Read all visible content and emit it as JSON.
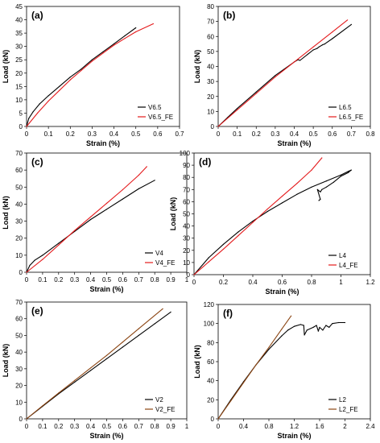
{
  "colors": {
    "experimental": "#000000",
    "fe_red": "#e41a1c",
    "fe_brown": "#8b4513"
  },
  "chart_data": [
    {
      "type": "line",
      "panel_label": "(a)",
      "xlabel": "Strain (%)",
      "ylabel": "Load (kN)",
      "xlim": [
        0,
        0.7
      ],
      "ylim": [
        0,
        45
      ],
      "xticks": [
        0,
        0.1,
        0.2,
        0.3,
        0.4,
        0.5,
        0.6,
        0.7
      ],
      "xtick_labels": [
        "0",
        "0.1",
        "0.2",
        "0.3",
        "0.4",
        "0.5",
        "0.6",
        "0.7"
      ],
      "yticks": [
        0,
        5,
        10,
        15,
        20,
        25,
        30,
        35,
        40,
        45
      ],
      "ytick_labels": [
        "0",
        "5",
        "10",
        "15",
        "20",
        "25",
        "30",
        "35",
        "40",
        "45"
      ],
      "legend_position": "bottom-right",
      "grid": false,
      "series": [
        {
          "name": "V6.5",
          "color": "#000000",
          "x": [
            0,
            0.01,
            0.03,
            0.06,
            0.1,
            0.15,
            0.2,
            0.25,
            0.3,
            0.35,
            0.4,
            0.45,
            0.5
          ],
          "y": [
            0,
            3,
            5.5,
            8.5,
            11.5,
            15,
            18.5,
            21.5,
            25,
            28,
            31,
            34,
            37
          ]
        },
        {
          "name": "V6.5_FE",
          "color": "#e41a1c",
          "x": [
            0,
            0.05,
            0.1,
            0.15,
            0.2,
            0.25,
            0.3,
            0.35,
            0.4,
            0.45,
            0.5,
            0.58
          ],
          "y": [
            0,
            5,
            9.5,
            13.5,
            17.5,
            21,
            24.5,
            27.5,
            30.5,
            33,
            35.5,
            38.5
          ]
        }
      ]
    },
    {
      "type": "line",
      "panel_label": "(b)",
      "xlabel": "Strain (%)",
      "ylabel": "Load (kN)",
      "xlim": [
        0,
        0.8
      ],
      "ylim": [
        0,
        80
      ],
      "xticks": [
        0,
        0.1,
        0.2,
        0.3,
        0.4,
        0.5,
        0.6,
        0.7,
        0.8
      ],
      "xtick_labels": [
        "0",
        "0.1",
        "0.2",
        "0.3",
        "0.4",
        "0.5",
        "0.6",
        "0.7",
        "0.8"
      ],
      "yticks": [
        0,
        10,
        20,
        30,
        40,
        50,
        60,
        70,
        80
      ],
      "ytick_labels": [
        "0",
        "10",
        "20",
        "30",
        "40",
        "50",
        "60",
        "70",
        "80"
      ],
      "legend_position": "bottom-right",
      "grid": false,
      "series": [
        {
          "name": "L6.5",
          "color": "#000000",
          "x": [
            0,
            0.05,
            0.1,
            0.2,
            0.3,
            0.4,
            0.42,
            0.43,
            0.5,
            0.52,
            0.53,
            0.55,
            0.56,
            0.6,
            0.7
          ],
          "y": [
            0,
            6,
            12,
            23,
            34,
            43,
            44.5,
            44,
            51,
            52,
            53,
            54.5,
            55,
            58.5,
            68
          ]
        },
        {
          "name": "L6.5_FE",
          "color": "#e41a1c",
          "x": [
            0,
            0.1,
            0.2,
            0.3,
            0.4,
            0.5,
            0.6,
            0.68
          ],
          "y": [
            0,
            11,
            22,
            33,
            43,
            53,
            63,
            71
          ]
        }
      ]
    },
    {
      "type": "line",
      "panel_label": "(c)",
      "xlabel": "Strain (%)",
      "ylabel": "Load (kN)",
      "xlim": [
        0,
        1
      ],
      "ylim": [
        0,
        70
      ],
      "xticks": [
        0,
        0.1,
        0.2,
        0.3,
        0.4,
        0.5,
        0.6,
        0.7,
        0.8,
        0.9,
        1
      ],
      "xtick_labels": [
        "0",
        "0.1",
        "0.2",
        "0.3",
        "0.4",
        "0.5",
        "0.6",
        "0.7",
        "0.8",
        "0.9",
        "1"
      ],
      "yticks": [
        0,
        10,
        20,
        30,
        40,
        50,
        60,
        70
      ],
      "ytick_labels": [
        "0",
        "10",
        "20",
        "30",
        "40",
        "50",
        "60",
        "70"
      ],
      "legend_position": "bottom-right",
      "grid": false,
      "series": [
        {
          "name": "V4",
          "color": "#000000",
          "x": [
            0,
            0.02,
            0.05,
            0.1,
            0.2,
            0.3,
            0.4,
            0.5,
            0.6,
            0.7,
            0.8
          ],
          "y": [
            0,
            4,
            7,
            10,
            17,
            24,
            31,
            37,
            43,
            49,
            54
          ]
        },
        {
          "name": "V4_FE",
          "color": "#e41a1c",
          "x": [
            0,
            0.1,
            0.2,
            0.3,
            0.4,
            0.5,
            0.6,
            0.7,
            0.75
          ],
          "y": [
            0,
            7.5,
            16,
            24.5,
            32.5,
            40.5,
            48.5,
            57,
            62
          ]
        }
      ]
    },
    {
      "type": "line",
      "panel_label": "(d)",
      "xlabel": "Strain (%)",
      "ylabel": "Load (kN)",
      "xlim": [
        0,
        1.2
      ],
      "ylim": [
        0,
        100
      ],
      "xticks": [
        0,
        0.2,
        0.4,
        0.6,
        0.8,
        1,
        1.2
      ],
      "xtick_labels": [
        "0",
        "0.2",
        "0.4",
        "0.6",
        "0.8",
        "1",
        "1.2"
      ],
      "yticks": [
        0,
        10,
        20,
        30,
        40,
        50,
        60,
        70,
        80,
        90,
        100
      ],
      "ytick_labels": [
        "0",
        "10",
        "20",
        "30",
        "40",
        "50",
        "60",
        "70",
        "80",
        "90",
        "100"
      ],
      "legend_position": "bottom-right",
      "grid": false,
      "series": [
        {
          "name": "L4",
          "color": "#000000",
          "x": [
            0,
            0.1,
            0.2,
            0.3,
            0.4,
            0.5,
            0.6,
            0.7,
            0.8,
            0.9,
            1.0,
            1.05,
            1.07,
            1.05,
            1.0,
            0.95,
            0.9,
            0.87,
            0.86,
            0.84,
            0.86,
            0.85,
            0.86
          ],
          "y": [
            0,
            14,
            25,
            35,
            44,
            52,
            59,
            66,
            72,
            77,
            82,
            85,
            86,
            84,
            81,
            76,
            72,
            70,
            68,
            70,
            62,
            61,
            62
          ]
        },
        {
          "name": "L4_FE",
          "color": "#e41a1c",
          "x": [
            0,
            0.1,
            0.2,
            0.3,
            0.4,
            0.5,
            0.6,
            0.7,
            0.8,
            0.87
          ],
          "y": [
            0,
            10.5,
            21,
            32,
            43,
            54,
            64.5,
            75,
            86,
            96
          ]
        }
      ]
    },
    {
      "type": "line",
      "panel_label": "(e)",
      "xlabel": "Strain (%)",
      "ylabel": "Load (kN)",
      "xlim": [
        0,
        1
      ],
      "ylim": [
        0,
        70
      ],
      "xticks": [
        0,
        0.1,
        0.2,
        0.3,
        0.4,
        0.5,
        0.6,
        0.7,
        0.8,
        0.9,
        1
      ],
      "xtick_labels": [
        "0",
        "0.1",
        "0.2",
        "0.3",
        "0.4",
        "0.5",
        "0.6",
        "0.7",
        "0.8",
        "0.9",
        "1"
      ],
      "yticks": [
        0,
        10,
        20,
        30,
        40,
        50,
        60,
        70
      ],
      "ytick_labels": [
        "0",
        "10",
        "20",
        "30",
        "40",
        "50",
        "60",
        "70"
      ],
      "legend_position": "bottom-right",
      "grid": false,
      "series": [
        {
          "name": "V2",
          "color": "#000000",
          "x": [
            0,
            0.1,
            0.2,
            0.3,
            0.4,
            0.5,
            0.6,
            0.7,
            0.8,
            0.9
          ],
          "y": [
            0,
            7.5,
            15,
            22,
            29,
            36,
            43,
            50,
            57,
            64
          ]
        },
        {
          "name": "V2_FE",
          "color": "#8b4513",
          "x": [
            0,
            0.1,
            0.2,
            0.3,
            0.4,
            0.5,
            0.6,
            0.7,
            0.85
          ],
          "y": [
            0,
            7.8,
            15.5,
            23,
            30.5,
            38,
            46,
            54,
            66
          ]
        }
      ]
    },
    {
      "type": "line",
      "panel_label": "(f)",
      "xlabel": "Strain (%)",
      "ylabel": "Load (kN)",
      "xlim": [
        0,
        2.4
      ],
      "ylim": [
        0,
        120
      ],
      "xticks": [
        0,
        0.4,
        0.8,
        1.2,
        1.6,
        2,
        2.4
      ],
      "xtick_labels": [
        "0",
        "0.4",
        "0.8",
        "1.2",
        "1.6",
        "2",
        "2.4"
      ],
      "yticks": [
        0,
        20,
        40,
        60,
        80,
        100,
        120
      ],
      "ytick_labels": [
        "0",
        "20",
        "40",
        "60",
        "80",
        "100",
        "120"
      ],
      "legend_position": "bottom-right",
      "grid": false,
      "series": [
        {
          "name": "L2",
          "color": "#000000",
          "x": [
            0,
            0.2,
            0.4,
            0.6,
            0.8,
            1.0,
            1.1,
            1.2,
            1.3,
            1.35,
            1.36,
            1.4,
            1.5,
            1.55,
            1.58,
            1.6,
            1.65,
            1.7,
            1.75,
            1.8,
            1.9,
            2.0
          ],
          "y": [
            0,
            20,
            39,
            57,
            73,
            87,
            93,
            97,
            99,
            98,
            88,
            93,
            96,
            98,
            92,
            96,
            93,
            98,
            96,
            100,
            101,
            101
          ]
        },
        {
          "name": "L2_FE",
          "color": "#8b4513",
          "x": [
            0,
            0.2,
            0.4,
            0.6,
            0.8,
            1.0,
            1.15
          ],
          "y": [
            0,
            19,
            38,
            57,
            75,
            94,
            108
          ]
        }
      ]
    }
  ]
}
